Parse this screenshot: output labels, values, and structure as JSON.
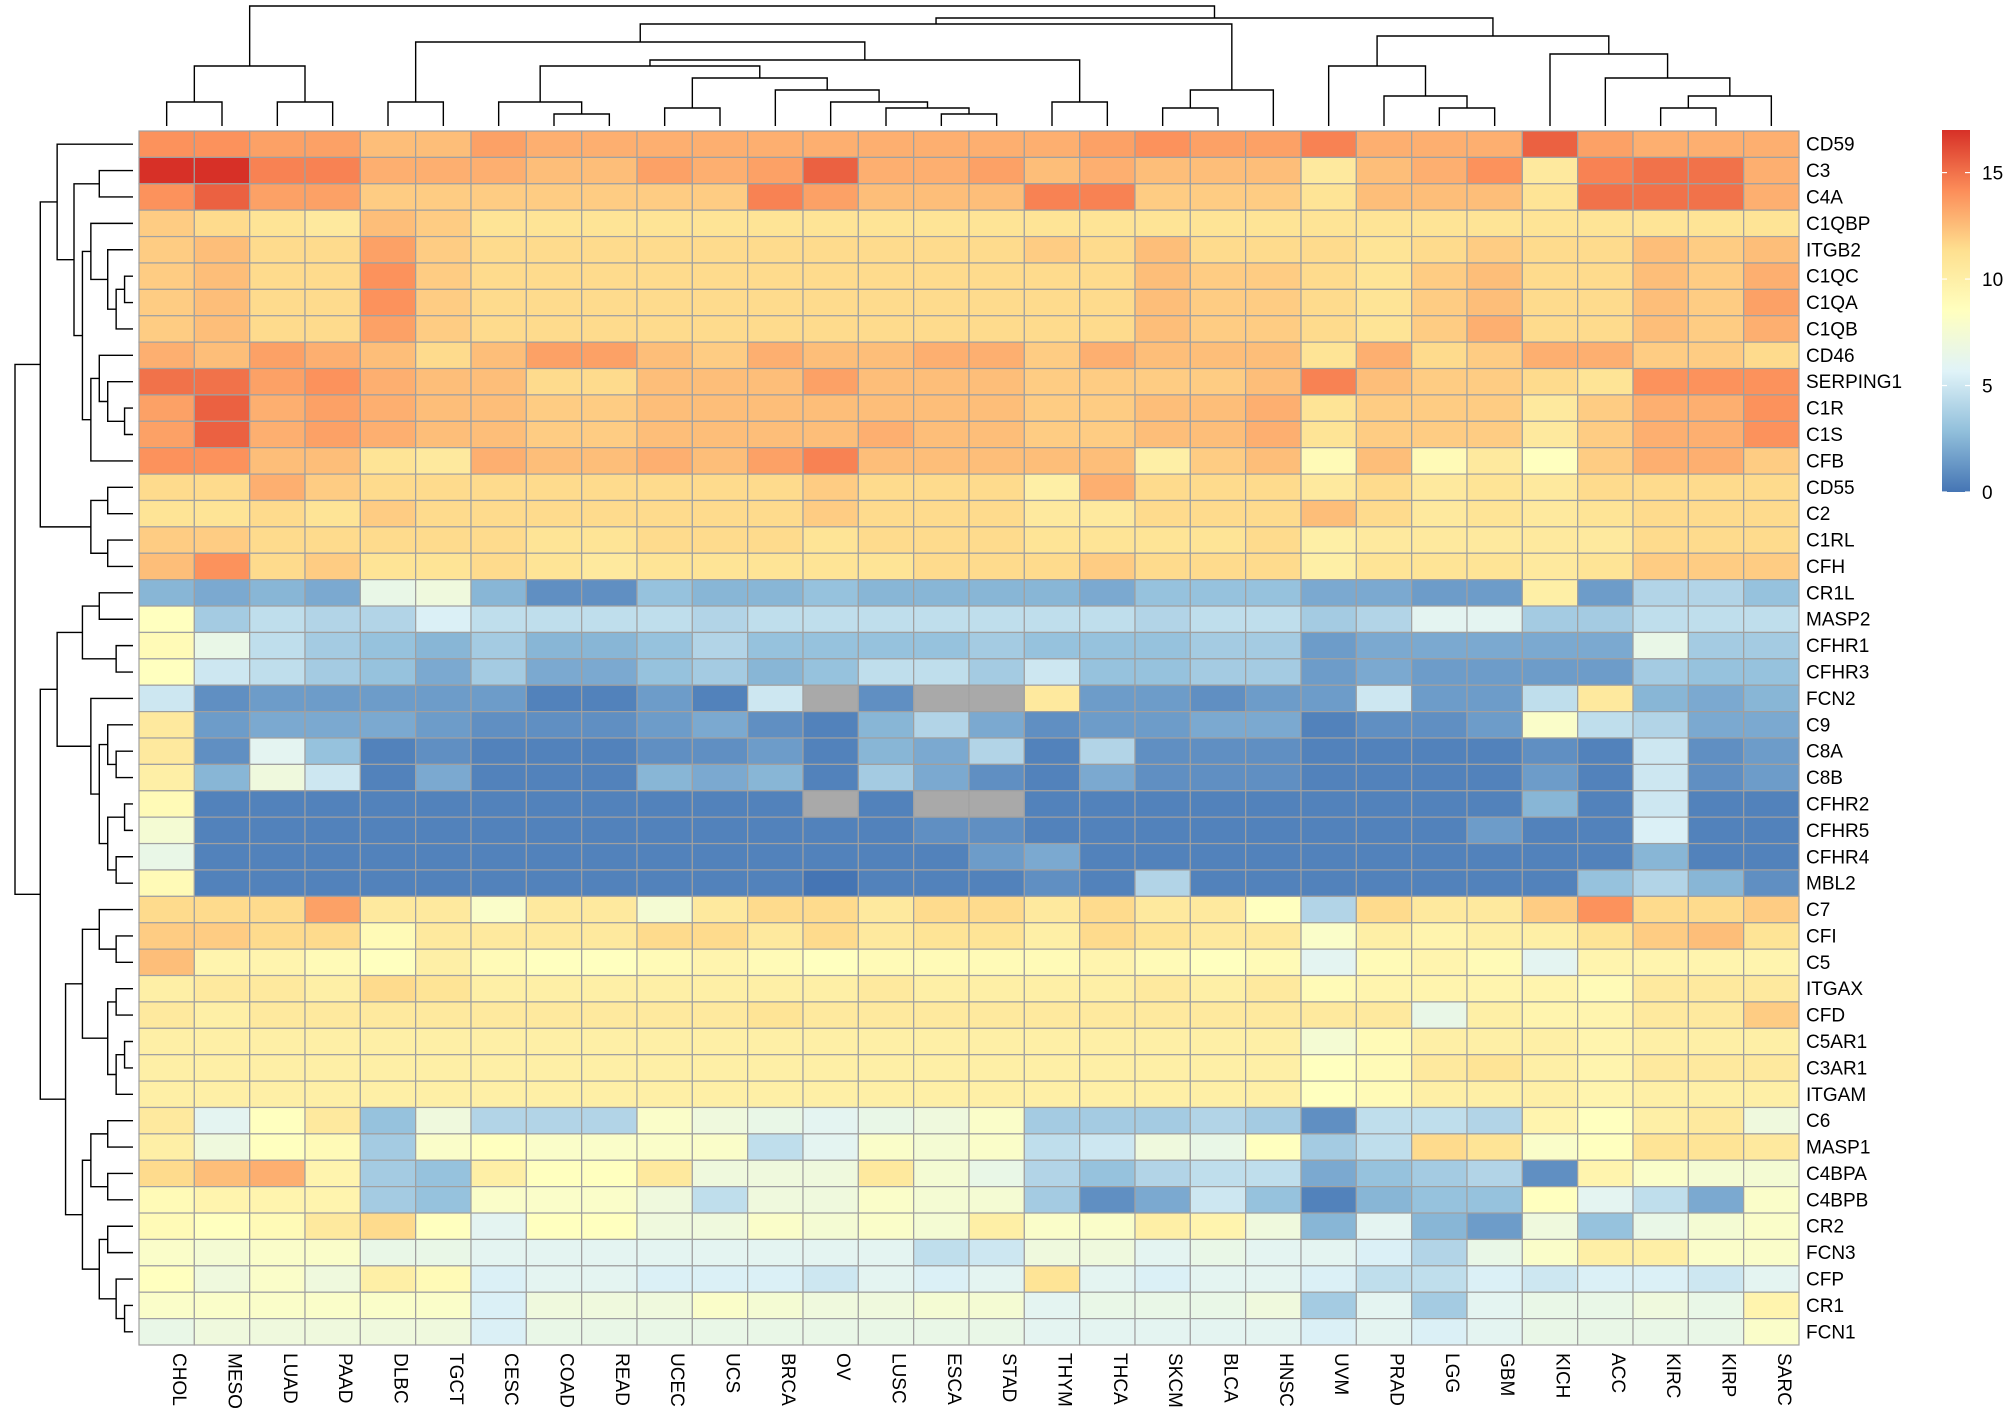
{
  "chart_data": {
    "type": "heatmap",
    "title": "",
    "xlabel": "",
    "ylabel": "",
    "columns": [
      "CHOL",
      "MESO",
      "LUAD",
      "PAAD",
      "DLBC",
      "TGCT",
      "CESC",
      "COAD",
      "READ",
      "UCEC",
      "UCS",
      "BRCA",
      "OV",
      "LUSC",
      "ESCA",
      "STAD",
      "THYM",
      "THCA",
      "SKCM",
      "BLCA",
      "HNSC",
      "UVM",
      "PRAD",
      "LGG",
      "GBM",
      "KICH",
      "ACC",
      "KIRC",
      "KIRP",
      "SARC"
    ],
    "rows": [
      "CD59",
      "C3",
      "C4A",
      "C1QBP",
      "ITGB2",
      "C1QC",
      "C1QA",
      "C1QB",
      "CD46",
      "SERPING1",
      "C1R",
      "C1S",
      "CFB",
      "CD55",
      "C2",
      "C1RL",
      "CFH",
      "CR1L",
      "MASP2",
      "CFHR1",
      "CFHR3",
      "FCN2",
      "C9",
      "C8A",
      "C8B",
      "CFHR2",
      "CFHR5",
      "CFHR4",
      "MBL2",
      "C7",
      "CFI",
      "C5",
      "ITGAX",
      "CFD",
      "C5AR1",
      "C3AR1",
      "ITGAM",
      "C6",
      "MASP1",
      "C4BPA",
      "C4BPB",
      "CR2",
      "FCN3",
      "CFP",
      "CR1",
      "FCN1"
    ],
    "values": [
      [
        14,
        14,
        13.5,
        13.5,
        12.5,
        12.5,
        13.5,
        13,
        13,
        13,
        13,
        13,
        13,
        13,
        13,
        13,
        13,
        13.5,
        14,
        13.5,
        13.5,
        14.5,
        13,
        13,
        13,
        15.5,
        13.5,
        13,
        13,
        13
      ],
      [
        17,
        17,
        14.5,
        14.5,
        13,
        13,
        13,
        12.5,
        12.5,
        13.5,
        13,
        13.5,
        15.5,
        13,
        13,
        13.5,
        12.5,
        13,
        12.5,
        12.5,
        12.5,
        10.5,
        12.5,
        13,
        14,
        10.5,
        14.5,
        15,
        15,
        13
      ],
      [
        14,
        15.5,
        13.5,
        13.5,
        12,
        12,
        12,
        12,
        12,
        12,
        12,
        14.5,
        13.5,
        12.5,
        12.5,
        12.5,
        14.5,
        14.5,
        12,
        12,
        12,
        11,
        12.5,
        12.5,
        12.5,
        11,
        15,
        15,
        15,
        13
      ],
      [
        12,
        11.5,
        11,
        10.5,
        12.5,
        12,
        11,
        11,
        11,
        11,
        11,
        11,
        11,
        11,
        11,
        11,
        11,
        11,
        11,
        11,
        11,
        11,
        11,
        11,
        11,
        11,
        11,
        11,
        11,
        11
      ],
      [
        12,
        12.5,
        11.5,
        11.5,
        13.5,
        12,
        11.5,
        11.5,
        11.5,
        11.5,
        11.5,
        11.5,
        11.5,
        11.5,
        11.5,
        11.5,
        12,
        11.5,
        12.5,
        11.5,
        11.5,
        11.5,
        11,
        11.5,
        12,
        11.5,
        11.5,
        12.5,
        12,
        12.5
      ],
      [
        12,
        12.5,
        11.5,
        11.5,
        14,
        12,
        11.5,
        11.5,
        11.5,
        11.5,
        11.5,
        11.5,
        11.5,
        11.5,
        11.5,
        11.5,
        11.5,
        11.5,
        12.5,
        12,
        12,
        11.5,
        11,
        12,
        12.5,
        11.5,
        11.5,
        12.5,
        12,
        13
      ],
      [
        12,
        12.5,
        11.5,
        11.5,
        14,
        12,
        11.5,
        11.5,
        11.5,
        11.5,
        11.5,
        11.5,
        11.5,
        11.5,
        11.5,
        11.5,
        11.5,
        11.5,
        12.5,
        12,
        12,
        11.5,
        11,
        12,
        12.5,
        11.5,
        11.5,
        12.5,
        12,
        13.5
      ],
      [
        12,
        12.5,
        11.5,
        11.5,
        13.5,
        12,
        11.5,
        11.5,
        11.5,
        11.5,
        11.5,
        11.5,
        11.5,
        11.5,
        11.5,
        11.5,
        11.5,
        11.5,
        12.5,
        12,
        12,
        11.5,
        11,
        12,
        13,
        11.5,
        11.5,
        12.5,
        12,
        13
      ],
      [
        13,
        12.5,
        13.5,
        13,
        12.5,
        11.5,
        12.5,
        13.5,
        13.5,
        12.5,
        12,
        13,
        12.5,
        12.5,
        13,
        13,
        12,
        13,
        12.5,
        12.5,
        12.5,
        11,
        13,
        11.5,
        12,
        13,
        13,
        12,
        12,
        11.5
      ],
      [
        15,
        15,
        13.5,
        14,
        13,
        12.5,
        12.5,
        11.5,
        11.5,
        12.5,
        12.5,
        12.5,
        13.5,
        12.5,
        12.5,
        12.5,
        12,
        12,
        12,
        12,
        12.5,
        14.5,
        12.5,
        12,
        12,
        11.5,
        11,
        14,
        14,
        14
      ],
      [
        13.5,
        15.5,
        13,
        13.5,
        13,
        12.5,
        12.5,
        12,
        12,
        12.5,
        12.5,
        12.5,
        12.5,
        12.5,
        12.5,
        12.5,
        12,
        12,
        12.5,
        12.5,
        13,
        11,
        12,
        12,
        12,
        10.5,
        12,
        13,
        13,
        14
      ],
      [
        13.5,
        15.5,
        13,
        13.5,
        13,
        12.5,
        12.5,
        12,
        12,
        12.5,
        12.5,
        12.5,
        12.5,
        13,
        12.5,
        12.5,
        12,
        12,
        12.5,
        12.5,
        13,
        11,
        12,
        12,
        12,
        10.5,
        12,
        13,
        13,
        14
      ],
      [
        14,
        14,
        12.5,
        12.5,
        11,
        10.5,
        13,
        12.5,
        12.5,
        13,
        12.5,
        13.5,
        14.5,
        12.5,
        12.5,
        12.5,
        12.5,
        12.5,
        10,
        12,
        12.5,
        9,
        12.5,
        9,
        10.5,
        8.5,
        12,
        13,
        13,
        12
      ],
      [
        11.5,
        11.5,
        13,
        12,
        11.5,
        11.5,
        11.5,
        11.5,
        11.5,
        11.5,
        11.5,
        11.5,
        12,
        11.5,
        11.5,
        11.5,
        10,
        13,
        11.5,
        11.5,
        11.5,
        10.5,
        11.5,
        10.5,
        11,
        10.5,
        11.5,
        11.5,
        11.5,
        11.5
      ],
      [
        11,
        11,
        11.5,
        11,
        12,
        11.5,
        11.5,
        11.5,
        11.5,
        11.5,
        11.5,
        11.5,
        12,
        11.5,
        11.5,
        11.5,
        10.5,
        10.5,
        11.5,
        11.5,
        11.5,
        12.5,
        11.5,
        10.5,
        11,
        10.5,
        11,
        11.5,
        11.5,
        11.5
      ],
      [
        12,
        12,
        11.5,
        11.5,
        11.5,
        11.5,
        11.5,
        11,
        11,
        11.5,
        11.5,
        11.5,
        11,
        11.5,
        11.5,
        11.5,
        11,
        11,
        11,
        11,
        11.5,
        10,
        10.5,
        10.5,
        10.5,
        10.5,
        10.5,
        11.5,
        11.5,
        11.5
      ],
      [
        12.5,
        14,
        11.5,
        12,
        11,
        11,
        11.5,
        11,
        10.5,
        11,
        11,
        11,
        11,
        11,
        11.5,
        11.5,
        11.5,
        12,
        11.5,
        11.5,
        11.5,
        10,
        11,
        11,
        11,
        10.5,
        11,
        12,
        12,
        12
      ],
      [
        2.5,
        2,
        2.5,
        2,
        6.5,
        7,
        2.5,
        1,
        1,
        3,
        2.5,
        2.5,
        3,
        2.5,
        2.5,
        2.5,
        2.5,
        2,
        3,
        3,
        3,
        2,
        2,
        1.5,
        1.5,
        10,
        1.5,
        4,
        4,
        3
      ],
      [
        8.5,
        3.5,
        4.5,
        4,
        4,
        5.5,
        4.5,
        4.5,
        4.5,
        4.5,
        4,
        4.5,
        4.5,
        4.5,
        4.5,
        4.5,
        4.5,
        4.5,
        4,
        4.5,
        4.5,
        3.5,
        4,
        6,
        6,
        3.5,
        3.5,
        4.5,
        4.5,
        4.5
      ],
      [
        9,
        6.5,
        4.5,
        3.5,
        3,
        2.5,
        3.5,
        2.5,
        2.5,
        3,
        4,
        3,
        3,
        3,
        3,
        3.5,
        3,
        3,
        3,
        3.5,
        3.5,
        1.5,
        2,
        2,
        2,
        2,
        2,
        6.5,
        3.5,
        3.5
      ],
      [
        8.5,
        5,
        4.5,
        3.5,
        3,
        2,
        3.5,
        2,
        2,
        3,
        3.5,
        2.5,
        3,
        4.5,
        4.5,
        3.5,
        5,
        3,
        3,
        3.5,
        3.5,
        1.5,
        2,
        1.5,
        1.5,
        1.5,
        1.5,
        3.5,
        3,
        3
      ],
      [
        5,
        1,
        1.5,
        1.5,
        1.5,
        1.5,
        1.5,
        0.5,
        0.5,
        1.5,
        0.5,
        5,
        null,
        1,
        null,
        null,
        10.5,
        1.5,
        1.5,
        1,
        1.5,
        1.5,
        5,
        1.5,
        1.5,
        4.5,
        10.5,
        2.5,
        2,
        2.5
      ],
      [
        10.5,
        1.5,
        2,
        2,
        2,
        1.5,
        1,
        1,
        1,
        1.5,
        2,
        1,
        0.5,
        2.5,
        4,
        2,
        1,
        1.5,
        1.5,
        2,
        2,
        0.5,
        1,
        1,
        1.5,
        8,
        4.5,
        4,
        2,
        2
      ],
      [
        10.5,
        1,
        6,
        3,
        0.5,
        1,
        0.5,
        0.5,
        0.5,
        1,
        1,
        1.5,
        0.5,
        2.5,
        2,
        4,
        0.5,
        4,
        1,
        1,
        1,
        0.5,
        0.5,
        0.5,
        0.5,
        1,
        0.5,
        5,
        1,
        1.5
      ],
      [
        10,
        2.5,
        7,
        5,
        0.5,
        2,
        0.5,
        0.5,
        0.5,
        2.5,
        2,
        2.5,
        0.5,
        3.5,
        2,
        1,
        0.5,
        2,
        1,
        1,
        1,
        0.5,
        0.5,
        0.5,
        0.5,
        1.5,
        0.5,
        5,
        1,
        1.5
      ],
      [
        9,
        0.5,
        0.5,
        0.5,
        0.5,
        0.5,
        0.5,
        0.5,
        0.5,
        0.5,
        0.5,
        0.5,
        null,
        0.5,
        null,
        null,
        0.5,
        0.5,
        0.5,
        0.5,
        0.5,
        0.5,
        0.5,
        0.5,
        0.5,
        2.5,
        0.5,
        5,
        0.5,
        0.5
      ],
      [
        7.5,
        0.5,
        0.5,
        0.5,
        0.5,
        0.5,
        0.5,
        0.5,
        0.5,
        0.5,
        0.5,
        0.5,
        0.5,
        0.5,
        1,
        1,
        0.5,
        0.5,
        0.5,
        0.5,
        0.5,
        0.5,
        0.5,
        0.5,
        1.5,
        0.5,
        0.5,
        5.5,
        0.5,
        0.5
      ],
      [
        6.5,
        0.5,
        0.5,
        0.5,
        0.5,
        0.5,
        0.5,
        0.5,
        0.5,
        0.5,
        0.5,
        0.5,
        0.5,
        0.5,
        0.5,
        1.5,
        2,
        0.5,
        0.5,
        0.5,
        0.5,
        0.5,
        0.5,
        0.5,
        0.5,
        0.5,
        0.5,
        2.5,
        0.5,
        0.5
      ],
      [
        9,
        0.5,
        0.5,
        0.5,
        0.5,
        0.5,
        0.5,
        0.5,
        0.5,
        0.5,
        0.5,
        0.5,
        0,
        0.5,
        0.5,
        0.5,
        1,
        0.5,
        4,
        0.5,
        0.5,
        0.5,
        0.5,
        0.5,
        0.5,
        0.5,
        3,
        4,
        2.5,
        1
      ],
      [
        11.5,
        11.5,
        11.5,
        13.5,
        10.5,
        10.5,
        8,
        10.5,
        10.5,
        7.5,
        10.5,
        11.5,
        11.5,
        10.5,
        11.5,
        11.5,
        10.5,
        11.5,
        10.5,
        10.5,
        8.5,
        4,
        11.5,
        10.5,
        10.5,
        12,
        14,
        11.5,
        11.5,
        12
      ],
      [
        12,
        12,
        11.5,
        11.5,
        9,
        10.5,
        10.5,
        10.5,
        10.5,
        11.5,
        11.5,
        10.5,
        11.5,
        10.5,
        11,
        11,
        10,
        11.5,
        11,
        10.5,
        10.5,
        8,
        10,
        9.5,
        10,
        10,
        11,
        12,
        12.5,
        11
      ],
      [
        12.5,
        9.5,
        9.5,
        9,
        8.5,
        10,
        9,
        8.5,
        8.5,
        9,
        9.5,
        9,
        8.5,
        9,
        9,
        9,
        9,
        9.5,
        9,
        8.5,
        9,
        6,
        9,
        9.5,
        9,
        6,
        9.5,
        9.5,
        9.5,
        9.5
      ],
      [
        10,
        10.5,
        10.5,
        10,
        11.5,
        11,
        10,
        10,
        10,
        10,
        10,
        10,
        10,
        10.5,
        10,
        10,
        10,
        10,
        10.5,
        10,
        10.5,
        9,
        9.5,
        9.5,
        9.5,
        9.5,
        9,
        10.5,
        10.5,
        10.5
      ],
      [
        10.5,
        10,
        10.5,
        10.5,
        10.5,
        10.5,
        10.5,
        10.5,
        10.5,
        10.5,
        10.5,
        11,
        10.5,
        10.5,
        10.5,
        10.5,
        10.5,
        10.5,
        10.5,
        10.5,
        10.5,
        10.5,
        10.5,
        6.5,
        10,
        9.5,
        9.5,
        10.5,
        10.5,
        12
      ],
      [
        10,
        10,
        10,
        10,
        10,
        10,
        10,
        10,
        10,
        10,
        10,
        10,
        10,
        10,
        10,
        10,
        10,
        10,
        10,
        10,
        10,
        7.5,
        9,
        10,
        10,
        10,
        9.5,
        10,
        10,
        10
      ],
      [
        10,
        10,
        10,
        10,
        10,
        10,
        10,
        10,
        10,
        10,
        10,
        10,
        10,
        10,
        10,
        10,
        10,
        10,
        10,
        10,
        10,
        8.5,
        9,
        10.5,
        11,
        10,
        9.5,
        10.5,
        10.5,
        10.5
      ],
      [
        10,
        10,
        10,
        10,
        10,
        10,
        10,
        10,
        10,
        10,
        10,
        10,
        10,
        10,
        10,
        10,
        10,
        10,
        10,
        10,
        10,
        8.5,
        9,
        10,
        10,
        10,
        9.5,
        10,
        10,
        10
      ],
      [
        10.5,
        6,
        8.5,
        10.5,
        3,
        7,
        4,
        4,
        4,
        8,
        7,
        6.5,
        6,
        6.5,
        7,
        8,
        3.5,
        3.5,
        3.5,
        4,
        3.5,
        1,
        4.5,
        4.5,
        4,
        9.5,
        8.5,
        10,
        10.5,
        7
      ],
      [
        10,
        7,
        8.5,
        9,
        3.5,
        8,
        8.5,
        8,
        8,
        8,
        8,
        4.5,
        6,
        8,
        7.5,
        8,
        4.5,
        5,
        7,
        6.5,
        8.5,
        3.5,
        4.5,
        11.5,
        11,
        8,
        8.5,
        11,
        11,
        10.5
      ],
      [
        11.5,
        12.5,
        13,
        9.5,
        3.5,
        3,
        10,
        8.5,
        8.5,
        10.5,
        7,
        7,
        7,
        10.5,
        7.5,
        6.5,
        4,
        3,
        4,
        4.5,
        4.5,
        2,
        3,
        3.5,
        4,
        1,
        9.5,
        8,
        7.5,
        7.5
      ],
      [
        9,
        9.5,
        9.5,
        9.5,
        3.5,
        3,
        8,
        8,
        8,
        7,
        4.5,
        7,
        7,
        8,
        7.5,
        7.5,
        3.5,
        1,
        2,
        5,
        3,
        0.5,
        2.5,
        3,
        3,
        8.5,
        6,
        4.5,
        2,
        8
      ],
      [
        9,
        8.5,
        9,
        10.5,
        11.5,
        8.5,
        6,
        8.5,
        8.5,
        7,
        7,
        8,
        7.5,
        8,
        7.5,
        10,
        8,
        8,
        10,
        9.5,
        7,
        2.5,
        6,
        2.5,
        1.5,
        7,
        3,
        6.5,
        7.5,
        8
      ],
      [
        8,
        7.5,
        8,
        8,
        6.5,
        6.5,
        6,
        6,
        6,
        6,
        6,
        6,
        6,
        6,
        4.5,
        5,
        7,
        7,
        6,
        6.5,
        6,
        6,
        5.5,
        4,
        6.5,
        8,
        10,
        10,
        8,
        8
      ],
      [
        8.5,
        7,
        8,
        7,
        10,
        9,
        5.5,
        6,
        6,
        5.5,
        5.5,
        5.5,
        5,
        6,
        5.5,
        6,
        11,
        6,
        5.5,
        6,
        6,
        5.5,
        4.5,
        4.5,
        5.5,
        5,
        5.5,
        5.5,
        5,
        6
      ],
      [
        8,
        8,
        8,
        8,
        8,
        8,
        5.5,
        7,
        7,
        7,
        8,
        7.5,
        7,
        7,
        7.5,
        7.5,
        6,
        6.5,
        6.5,
        6.5,
        7,
        3.5,
        6,
        3.5,
        6,
        6.5,
        6.5,
        7,
        6.5,
        9.5
      ],
      [
        6.5,
        7,
        7,
        7,
        7,
        7,
        5.5,
        6.5,
        6.5,
        6.5,
        6.5,
        6.5,
        6.5,
        6.5,
        6.5,
        6.5,
        6,
        6,
        6,
        6,
        6,
        5.5,
        6,
        5.5,
        6,
        6.5,
        6.5,
        6.5,
        6.5,
        8
      ]
    ],
    "legend": {
      "type": "colorbar",
      "range": [
        0,
        17
      ],
      "ticks": [
        {
          "value": 0,
          "label": "0"
        },
        {
          "value": 5,
          "label": "5"
        },
        {
          "value": 10,
          "label": "10"
        },
        {
          "value": 15,
          "label": "15"
        }
      ],
      "colors": [
        "#4575b4",
        "#91bfdb",
        "#e0f3f8",
        "#ffffbf",
        "#fee090",
        "#fc8d59",
        "#d73027"
      ]
    },
    "grid": true,
    "missing_color": "#a9a9a9",
    "cell_border_color": "#a0a0a0"
  }
}
